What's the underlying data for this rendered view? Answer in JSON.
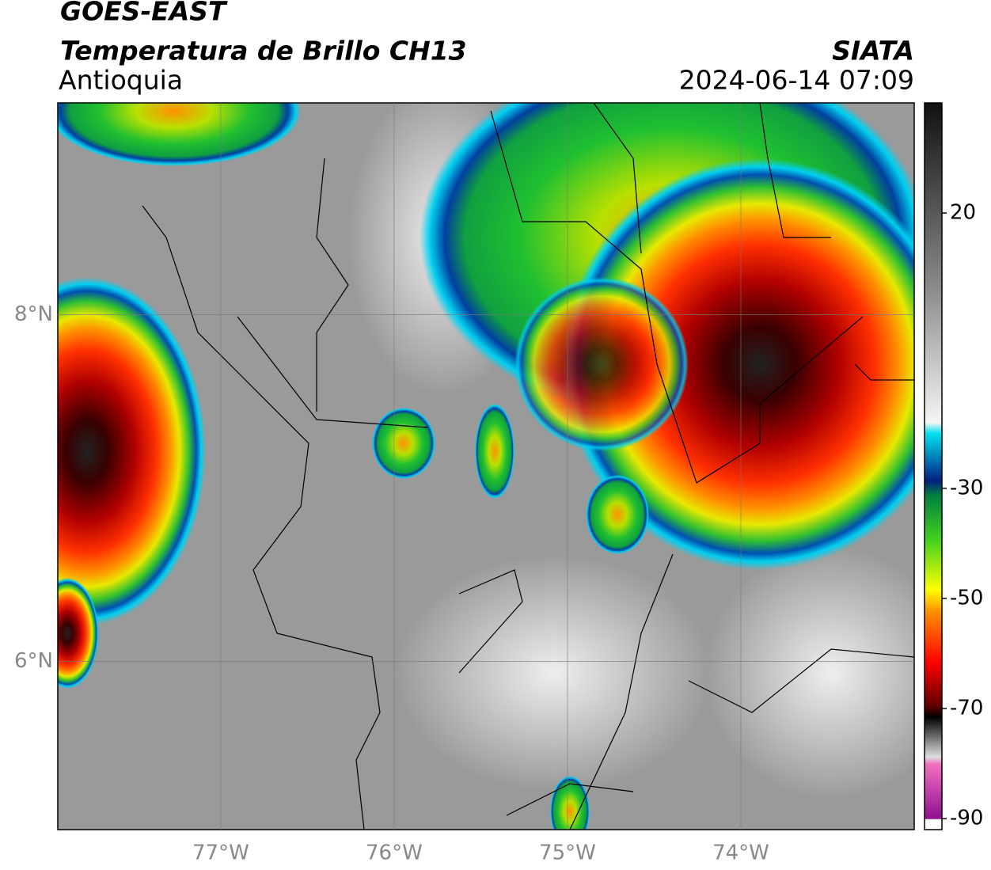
{
  "header": {
    "title": "GOES-EAST",
    "subtitle": "Temperatura de Brillo CH13",
    "region": "Antioquia",
    "source": "SIATA",
    "datetime": "2024-06-14 07:09"
  },
  "map": {
    "xlim": [
      -77.94,
      -73
    ],
    "ylim": [
      5.03,
      9.22
    ],
    "lon_ticks": [
      {
        "value": -77,
        "label": "77°W"
      },
      {
        "value": -76,
        "label": "76°W"
      },
      {
        "value": -75,
        "label": "75°W"
      },
      {
        "value": -74,
        "label": "74°W"
      }
    ],
    "lat_ticks": [
      {
        "value": 8,
        "label": "8°N"
      },
      {
        "value": 6,
        "label": "6°N"
      }
    ],
    "grid": true
  },
  "colorbar": {
    "lim": [
      -92,
      40
    ],
    "ticks": [
      20,
      -30,
      -50,
      -70,
      -90
    ]
  }
}
